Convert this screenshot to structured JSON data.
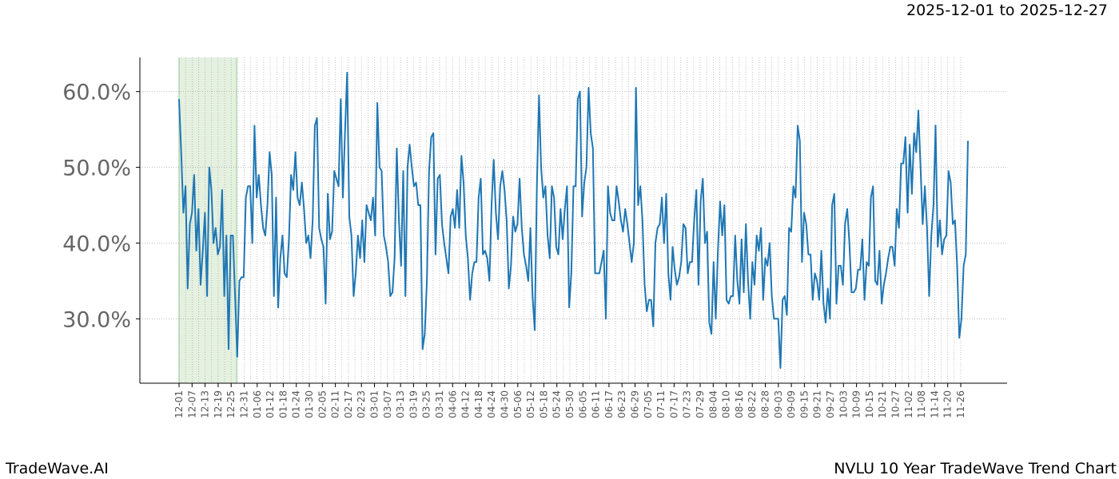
{
  "header": {
    "date_range": "2025-12-01 to 2025-12-27"
  },
  "footer": {
    "brand": "TradeWave.AI",
    "title": "NVLU 10 Year TradeWave Trend Chart"
  },
  "colors": {
    "line": "#1f77b4",
    "highlight": "#d9ead3",
    "grid": "#999999",
    "tick_text": "#666666"
  },
  "chart_data": {
    "type": "line",
    "title": "NVLU 10 Year TradeWave Trend Chart",
    "xlabel": "",
    "ylabel": "",
    "ylim": [
      0.215,
      0.645
    ],
    "y_ticks": [
      0.3,
      0.4,
      0.5,
      0.6
    ],
    "y_tick_labels": [
      "30.0%",
      "40.0%",
      "50.0%",
      "60.0%"
    ],
    "x_ticks": [
      "12-01",
      "12-07",
      "12-13",
      "12-19",
      "12-25",
      "12-31",
      "01-06",
      "01-12",
      "01-18",
      "01-24",
      "01-30",
      "02-05",
      "02-11",
      "02-17",
      "02-23",
      "03-01",
      "03-07",
      "03-13",
      "03-19",
      "03-25",
      "03-31",
      "04-06",
      "04-12",
      "04-18",
      "04-24",
      "04-30",
      "05-06",
      "05-12",
      "05-18",
      "05-24",
      "05-30",
      "06-05",
      "06-11",
      "06-17",
      "06-23",
      "06-29",
      "07-05",
      "07-11",
      "07-17",
      "07-23",
      "07-29",
      "08-04",
      "08-10",
      "08-16",
      "08-22",
      "08-28",
      "09-03",
      "09-09",
      "09-15",
      "09-21",
      "09-27",
      "10-03",
      "10-09",
      "10-15",
      "10-21",
      "10-27",
      "11-02",
      "11-08",
      "11-14",
      "11-20",
      "11-26"
    ],
    "highlight_range": [
      "12-01",
      "12-27"
    ],
    "grid": true,
    "legend": "none",
    "series": [
      {
        "values": [
          0.59,
          0.52,
          0.44,
          0.475,
          0.34,
          0.425,
          0.44,
          0.49,
          0.39,
          0.445,
          0.345,
          0.39,
          0.44,
          0.33,
          0.5,
          0.47,
          0.4,
          0.42,
          0.385,
          0.395,
          0.47,
          0.33,
          0.41,
          0.26,
          0.41,
          0.41,
          0.33,
          0.25,
          0.35,
          0.355,
          0.355,
          0.46,
          0.475,
          0.475,
          0.4,
          0.555,
          0.46,
          0.49,
          0.45,
          0.42,
          0.41,
          0.45,
          0.52,
          0.49,
          0.33,
          0.46,
          0.315,
          0.38,
          0.41,
          0.36,
          0.355,
          0.405,
          0.49,
          0.47,
          0.52,
          0.46,
          0.45,
          0.48,
          0.445,
          0.4,
          0.41,
          0.38,
          0.43,
          0.555,
          0.565,
          0.42,
          0.405,
          0.395,
          0.32,
          0.465,
          0.405,
          0.415,
          0.495,
          0.485,
          0.475,
          0.59,
          0.46,
          0.545,
          0.625,
          0.435,
          0.41,
          0.33,
          0.36,
          0.41,
          0.38,
          0.43,
          0.375,
          0.45,
          0.44,
          0.43,
          0.46,
          0.41,
          0.585,
          0.5,
          0.495,
          0.41,
          0.395,
          0.375,
          0.33,
          0.335,
          0.38,
          0.525,
          0.43,
          0.37,
          0.495,
          0.33,
          0.5,
          0.53,
          0.5,
          0.475,
          0.48,
          0.45,
          0.45,
          0.26,
          0.28,
          0.35,
          0.495,
          0.54,
          0.545,
          0.385,
          0.485,
          0.49,
          0.425,
          0.4,
          0.38,
          0.36,
          0.435,
          0.445,
          0.42,
          0.47,
          0.42,
          0.515,
          0.48,
          0.41,
          0.38,
          0.325,
          0.36,
          0.375,
          0.375,
          0.46,
          0.485,
          0.385,
          0.39,
          0.38,
          0.35,
          0.45,
          0.51,
          0.44,
          0.405,
          0.475,
          0.495,
          0.47,
          0.43,
          0.34,
          0.37,
          0.435,
          0.415,
          0.425,
          0.485,
          0.42,
          0.385,
          0.37,
          0.35,
          0.42,
          0.33,
          0.285,
          0.475,
          0.595,
          0.5,
          0.46,
          0.475,
          0.41,
          0.38,
          0.475,
          0.46,
          0.395,
          0.385,
          0.445,
          0.405,
          0.445,
          0.475,
          0.315,
          0.36,
          0.475,
          0.475,
          0.59,
          0.6,
          0.435,
          0.48,
          0.5,
          0.605,
          0.545,
          0.525,
          0.36,
          0.36,
          0.36,
          0.375,
          0.39,
          0.3,
          0.475,
          0.44,
          0.43,
          0.43,
          0.475,
          0.455,
          0.43,
          0.415,
          0.445,
          0.425,
          0.4,
          0.375,
          0.4,
          0.605,
          0.45,
          0.475,
          0.43,
          0.345,
          0.31,
          0.325,
          0.325,
          0.29,
          0.4,
          0.42,
          0.425,
          0.46,
          0.4,
          0.465,
          0.36,
          0.325,
          0.395,
          0.365,
          0.345,
          0.355,
          0.375,
          0.425,
          0.42,
          0.36,
          0.375,
          0.375,
          0.43,
          0.47,
          0.345,
          0.455,
          0.485,
          0.4,
          0.415,
          0.295,
          0.28,
          0.375,
          0.3,
          0.39,
          0.455,
          0.41,
          0.45,
          0.325,
          0.32,
          0.33,
          0.33,
          0.41,
          0.35,
          0.32,
          0.405,
          0.335,
          0.425,
          0.35,
          0.3,
          0.375,
          0.345,
          0.41,
          0.39,
          0.42,
          0.325,
          0.38,
          0.37,
          0.4,
          0.33,
          0.3,
          0.3,
          0.3,
          0.235,
          0.325,
          0.33,
          0.305,
          0.42,
          0.415,
          0.475,
          0.46,
          0.555,
          0.535,
          0.375,
          0.44,
          0.425,
          0.385,
          0.385,
          0.325,
          0.36,
          0.35,
          0.325,
          0.39,
          0.32,
          0.295,
          0.34,
          0.3,
          0.45,
          0.465,
          0.32,
          0.37,
          0.37,
          0.345,
          0.425,
          0.445,
          0.4,
          0.335,
          0.335,
          0.34,
          0.365,
          0.365,
          0.405,
          0.325,
          0.375,
          0.37,
          0.46,
          0.475,
          0.35,
          0.345,
          0.39,
          0.32,
          0.345,
          0.36,
          0.38,
          0.395,
          0.395,
          0.37,
          0.445,
          0.42,
          0.505,
          0.505,
          0.54,
          0.44,
          0.53,
          0.465,
          0.545,
          0.52,
          0.575,
          0.5,
          0.425,
          0.475,
          0.42,
          0.33,
          0.41,
          0.45,
          0.555,
          0.395,
          0.43,
          0.385,
          0.405,
          0.41,
          0.495,
          0.48,
          0.425,
          0.43,
          0.37,
          0.275,
          0.3,
          0.37,
          0.385,
          0.535
        ]
      }
    ]
  }
}
